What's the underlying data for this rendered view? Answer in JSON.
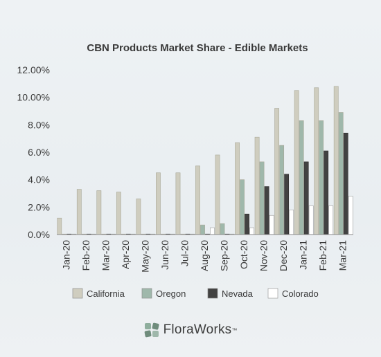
{
  "colors": {
    "California": "#cfcdbf",
    "Oregon": "#9fb8ab",
    "Nevada": "#424242",
    "Colorado": "#ffffff",
    "text": "#3a3a3a",
    "grid": "#d6dadd",
    "brand_leaf": "#7f9e8d"
  },
  "brand": {
    "name": "FloraWorks",
    "tm": "™"
  },
  "chart_data": {
    "type": "bar",
    "title": "CBN Products Market Share - Edible Markets",
    "xlabel": "",
    "ylabel": "",
    "ylim": [
      0,
      12
    ],
    "yticks": [
      0,
      2,
      4,
      6,
      8,
      10,
      12
    ],
    "ytick_labels": [
      "0.0%",
      "2.0%",
      "4.0%",
      "6.0%",
      "8.0%",
      "10.00%",
      "12.00%"
    ],
    "grid": false,
    "legend_position": "bottom",
    "categories": [
      "Jan-20",
      "Feb-20",
      "Mar-20",
      "Apr-20",
      "May-20",
      "Jun-20",
      "Jul-20",
      "Aug-20",
      "Sep-20",
      "Oct-20",
      "Nov-20",
      "Dec-20",
      "Jan-21",
      "Feb-21",
      "Mar-21"
    ],
    "series": [
      {
        "name": "California",
        "values": [
          1.2,
          3.3,
          3.2,
          3.1,
          2.6,
          4.5,
          4.5,
          5.0,
          5.8,
          6.7,
          7.1,
          9.2,
          10.5,
          10.7,
          10.8
        ]
      },
      {
        "name": "Oregon",
        "values": [
          0,
          0,
          0,
          0,
          0,
          0,
          0,
          0.7,
          0.8,
          4.0,
          5.3,
          6.5,
          8.3,
          8.3,
          8.9
        ]
      },
      {
        "name": "Nevada",
        "values": [
          0,
          0,
          0,
          0,
          0,
          0,
          0,
          0,
          0,
          1.5,
          3.5,
          4.4,
          5.3,
          6.1,
          7.4
        ]
      },
      {
        "name": "Colorado",
        "values": [
          0,
          0,
          0,
          0,
          0,
          0,
          0,
          0.5,
          0,
          0.5,
          1.4,
          1.8,
          2.1,
          2.1,
          2.8
        ]
      }
    ]
  }
}
